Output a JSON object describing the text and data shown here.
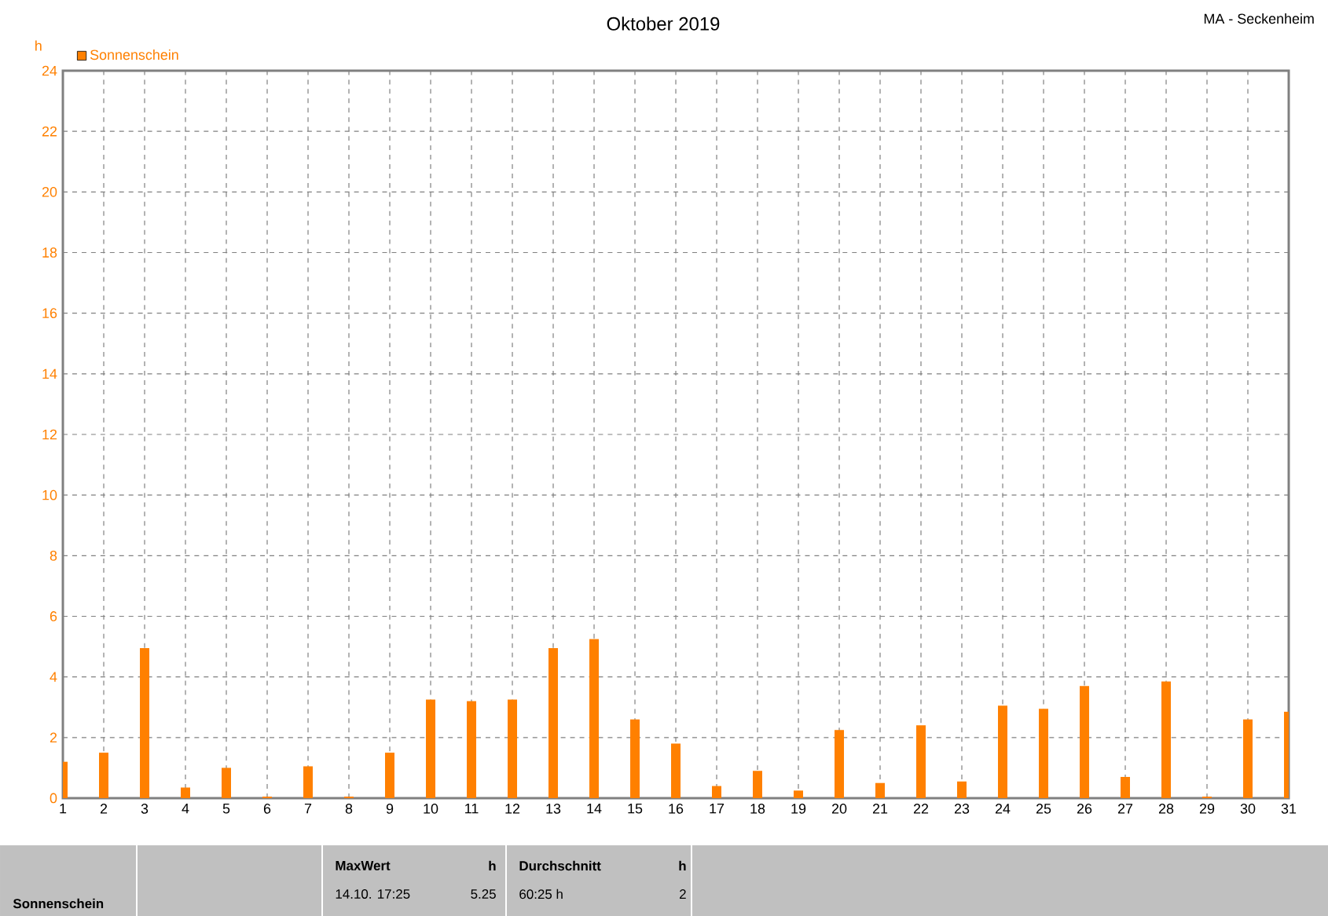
{
  "chart_data": {
    "type": "bar",
    "title": "Oktober 2019",
    "subtitle": "MA - Seckenheim",
    "ylabel": "h",
    "categories": [
      "1",
      "2",
      "3",
      "4",
      "5",
      "6",
      "7",
      "8",
      "9",
      "10",
      "11",
      "12",
      "13",
      "14",
      "15",
      "16",
      "17",
      "18",
      "19",
      "20",
      "21",
      "22",
      "23",
      "24",
      "25",
      "26",
      "27",
      "28",
      "29",
      "30",
      "31"
    ],
    "series": [
      {
        "name": "Sonnenschein",
        "color": "#ff8000",
        "values": [
          1.2,
          1.5,
          4.95,
          0.35,
          1.0,
          0.05,
          1.05,
          0.05,
          1.5,
          3.25,
          3.2,
          3.25,
          4.95,
          5.25,
          2.6,
          1.8,
          0.4,
          0.9,
          0.25,
          2.25,
          0.5,
          2.4,
          0.55,
          3.05,
          2.95,
          3.7,
          0.7,
          3.85,
          0.05,
          2.6,
          2.85
        ]
      }
    ],
    "ylim": [
      0,
      24
    ],
    "yticks": [
      0,
      2,
      4,
      6,
      8,
      10,
      12,
      14,
      16,
      18,
      20,
      22,
      24
    ],
    "grid": true,
    "legend": "top left",
    "annotations": [
      "Sonnenschein",
      "MaxWert",
      "h",
      "14.10. 17:25",
      "5.25",
      "Durchschnitt",
      "h",
      "60:25 h",
      "2"
    ]
  }
}
